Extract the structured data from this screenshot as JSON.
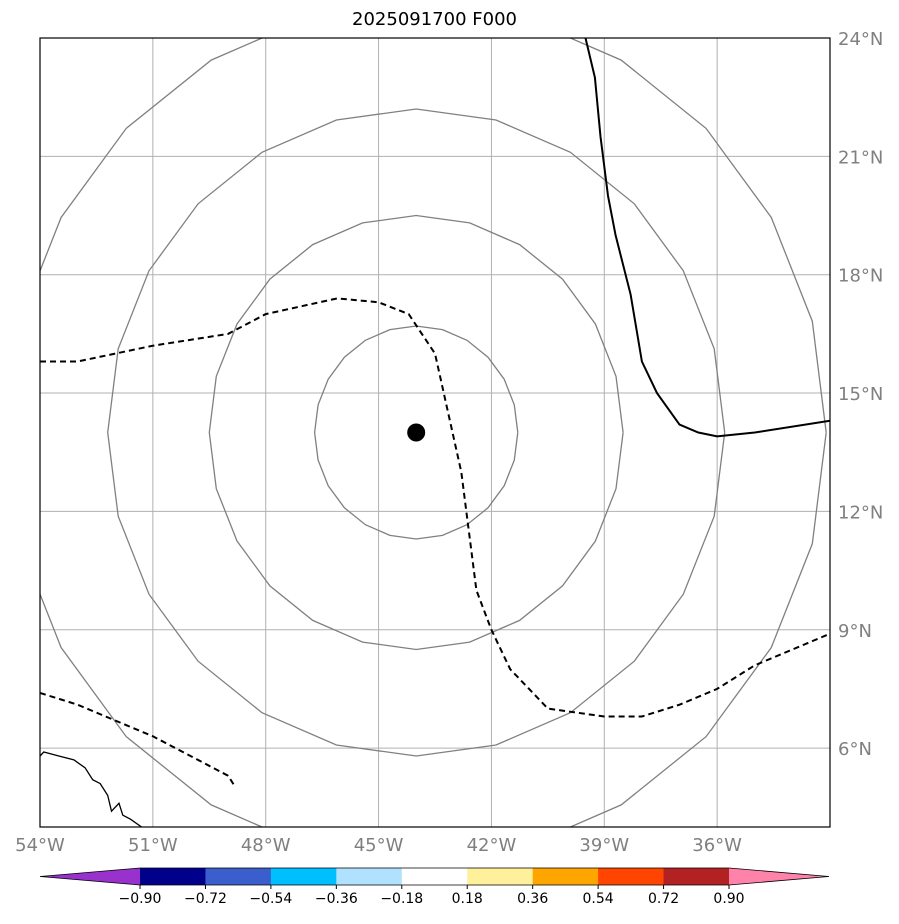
{
  "title": "2025091700 F000",
  "map": {
    "lon_range": [
      -54,
      -33
    ],
    "lat_range": [
      4,
      24
    ],
    "lon_ticks": [
      {
        "lon": -54,
        "label": "54°W"
      },
      {
        "lon": -51,
        "label": "51°W"
      },
      {
        "lon": -48,
        "label": "48°W"
      },
      {
        "lon": -45,
        "label": "45°W"
      },
      {
        "lon": -42,
        "label": "42°W"
      },
      {
        "lon": -39,
        "label": "39°W"
      },
      {
        "lon": -36,
        "label": "36°W"
      }
    ],
    "lat_ticks": [
      {
        "lat": 6,
        "label": "6°N"
      },
      {
        "lat": 9,
        "label": "9°N"
      },
      {
        "lat": 12,
        "label": "12°N"
      },
      {
        "lat": 15,
        "label": "15°N"
      },
      {
        "lat": 18,
        "label": "18°N"
      },
      {
        "lat": 21,
        "label": "21°N"
      },
      {
        "lat": 24,
        "label": "24°N"
      }
    ],
    "storm_center": {
      "lon": -44,
      "lat": 14
    },
    "range_rings": [
      {
        "radius_deg": 2.7
      },
      {
        "radius_deg": 5.5
      },
      {
        "radius_deg": 8.2
      },
      {
        "radius_deg": 10.9
      }
    ],
    "grid_color": "#b0b0b0",
    "ring_color": "#808080",
    "tick_label_color": "#808080",
    "contours": [
      {
        "style": "solid",
        "points": [
          [
            -39.5,
            24
          ],
          [
            -39.25,
            23
          ],
          [
            -39.1,
            21.5
          ],
          [
            -38.9,
            20
          ],
          [
            -38.7,
            19
          ],
          [
            -38.3,
            17.5
          ],
          [
            -38,
            15.8
          ],
          [
            -37.6,
            15
          ],
          [
            -37,
            14.2
          ],
          [
            -36.5,
            14
          ],
          [
            -36,
            13.9
          ],
          [
            -35,
            14
          ],
          [
            -33,
            14.3
          ]
        ]
      },
      {
        "style": "dashed",
        "points": [
          [
            -54,
            15.8
          ],
          [
            -53,
            15.8
          ],
          [
            -51,
            16.2
          ],
          [
            -49,
            16.5
          ],
          [
            -48,
            17
          ],
          [
            -46.1,
            17.4
          ],
          [
            -45,
            17.3
          ],
          [
            -44.2,
            17
          ],
          [
            -43.5,
            16
          ],
          [
            -42.8,
            13
          ],
          [
            -42.4,
            10
          ],
          [
            -42,
            9
          ],
          [
            -41.5,
            8
          ],
          [
            -40.5,
            7
          ],
          [
            -39,
            6.8
          ],
          [
            -38,
            6.8
          ],
          [
            -37,
            7.1
          ],
          [
            -36,
            7.5
          ],
          [
            -35,
            8.1
          ],
          [
            -33,
            8.9
          ]
        ]
      },
      {
        "style": "dashed",
        "points": [
          [
            -54,
            7.4
          ],
          [
            -53,
            7.1
          ],
          [
            -52,
            6.7
          ],
          [
            -51,
            6.3
          ],
          [
            -50,
            5.8
          ],
          [
            -49,
            5.3
          ],
          [
            -48.8,
            5.0
          ]
        ]
      }
    ],
    "coastline": [
      [
        -54,
        5.8
      ],
      [
        -53.9,
        5.9
      ],
      [
        -53.5,
        5.8
      ],
      [
        -53.1,
        5.7
      ],
      [
        -52.8,
        5.5
      ],
      [
        -52.6,
        5.2
      ],
      [
        -52.4,
        5.1
      ],
      [
        -52.2,
        4.8
      ],
      [
        -52.1,
        4.4
      ],
      [
        -51.9,
        4.6
      ],
      [
        -51.8,
        4.3
      ],
      [
        -51.6,
        4.2
      ],
      [
        -51.3,
        4
      ]
    ]
  },
  "colorbar": {
    "tick_labels": [
      "−0.90",
      "−0.72",
      "−0.54",
      "−0.36",
      "−0.18",
      "0.18",
      "0.36",
      "0.54",
      "0.72",
      "0.90"
    ],
    "colors": [
      "#9932cc",
      "#00008b",
      "#3a5fcd",
      "#00bfff",
      "#b0e2ff",
      "#ffffff",
      "#fff09b",
      "#ffa500",
      "#ff4500",
      "#b22222",
      "#ff82ab"
    ]
  }
}
